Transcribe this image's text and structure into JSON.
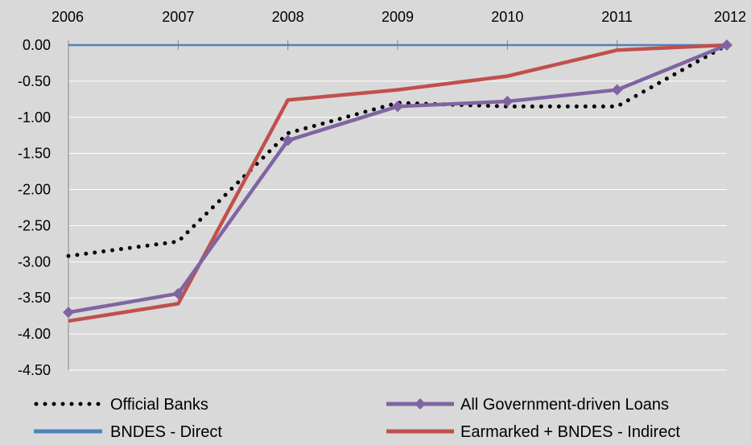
{
  "chart_data": {
    "type": "line",
    "title": "",
    "xlabel": "",
    "ylabel": "",
    "x": [
      "2006",
      "2007",
      "2008",
      "2009",
      "2010",
      "2011",
      "2012"
    ],
    "ylim": [
      -4.5,
      0.0
    ],
    "yticks": [
      "0.00",
      "-0.50",
      "-1.00",
      "-1.50",
      "-2.00",
      "-2.50",
      "-3.00",
      "-3.50",
      "-4.00",
      "-4.50"
    ],
    "x_axis_position": "top",
    "grid": true,
    "legend_position": "bottom",
    "background": "#d9d9d9",
    "series": [
      {
        "name": "Official Banks",
        "values": [
          -2.92,
          -2.72,
          -1.22,
          -0.8,
          -0.85,
          -0.85,
          0.0
        ],
        "color": "#000000",
        "style": "dotted"
      },
      {
        "name": "All Government-driven Loans",
        "values": [
          -3.7,
          -3.44,
          -1.32,
          -0.85,
          -0.78,
          -0.62,
          0.0
        ],
        "color": "#8064a2",
        "style": "solid",
        "marker": "diamond"
      },
      {
        "name": "BNDES - Direct",
        "values": [
          0.0,
          0.0,
          0.0,
          0.0,
          0.0,
          0.0,
          0.0
        ],
        "color": "#4f81bd",
        "style": "solid"
      },
      {
        "name": "Earmarked + BNDES - Indirect",
        "values": [
          -3.82,
          -3.58,
          -0.76,
          -0.62,
          -0.43,
          -0.07,
          0.0
        ],
        "color": "#c0504d",
        "style": "solid"
      }
    ]
  }
}
